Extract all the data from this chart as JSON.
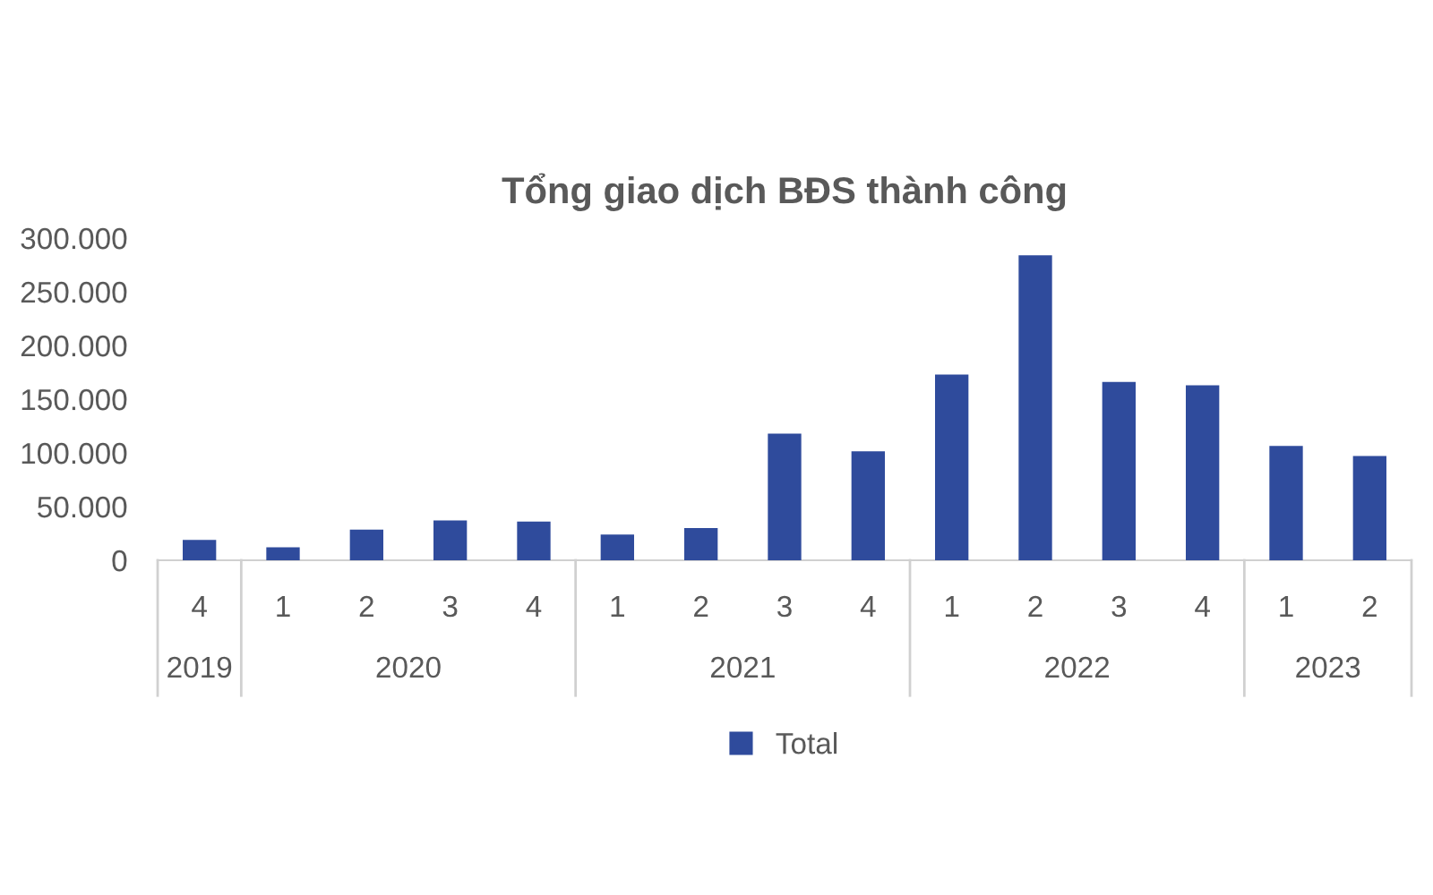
{
  "chart_data": {
    "type": "bar",
    "title": "Tổng giao dịch BĐS thành công",
    "categories": [
      "4",
      "1",
      "2",
      "3",
      "4",
      "1",
      "2",
      "3",
      "4",
      "1",
      "2",
      "3",
      "4",
      "1",
      "2"
    ],
    "series": [
      {
        "name": "Total",
        "color": "#2f4b9c",
        "values": [
          19000,
          12000,
          28500,
          37000,
          36000,
          24000,
          30000,
          118000,
          101500,
          173000,
          284000,
          166000,
          163000,
          106500,
          97000
        ]
      }
    ],
    "ylim": [
      0,
      300000
    ],
    "yticks": [
      {
        "value": 0,
        "label": "0"
      },
      {
        "value": 50000,
        "label": "50.000"
      },
      {
        "value": 100000,
        "label": "100.000"
      },
      {
        "value": 150000,
        "label": "150.000"
      },
      {
        "value": 200000,
        "label": "200.000"
      },
      {
        "value": 250000,
        "label": "250.000"
      },
      {
        "value": 300000,
        "label": "300.000"
      }
    ],
    "annotations": [
      "2019",
      "2020",
      "2021",
      "2022",
      "2023"
    ],
    "legend": "bottom"
  }
}
